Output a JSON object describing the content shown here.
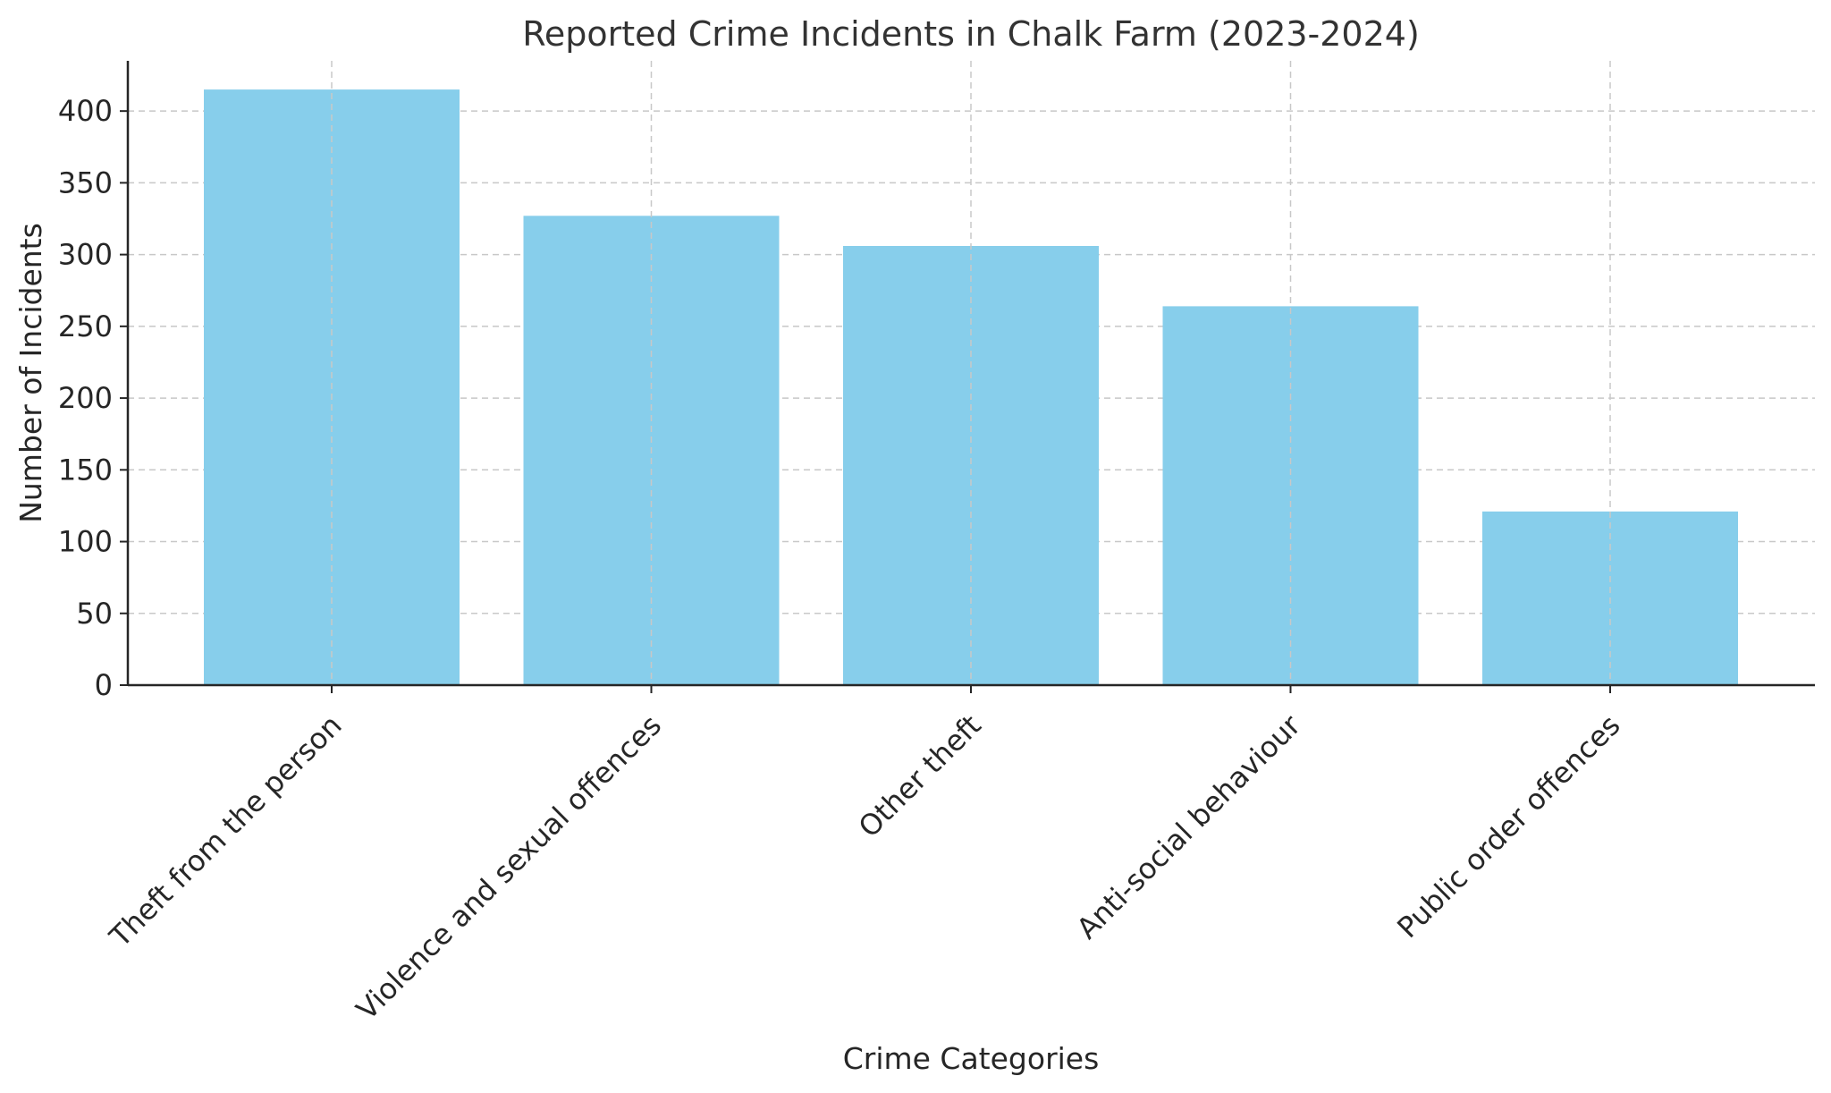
{
  "chart_data": {
    "type": "bar",
    "title": "Reported Crime Incidents in Chalk Farm (2023-2024)",
    "xlabel": "Crime Categories",
    "ylabel": "Number of Incidents",
    "categories": [
      "Theft from the person",
      "Violence and sexual offences",
      "Other theft",
      "Anti-social behaviour",
      "Public order offences"
    ],
    "values": [
      415,
      327,
      306,
      264,
      121
    ],
    "ylim": [
      0,
      435
    ],
    "yticks": [
      0,
      50,
      100,
      150,
      200,
      250,
      300,
      350,
      400
    ],
    "grid": true,
    "bar_color": "#87CEEB"
  }
}
